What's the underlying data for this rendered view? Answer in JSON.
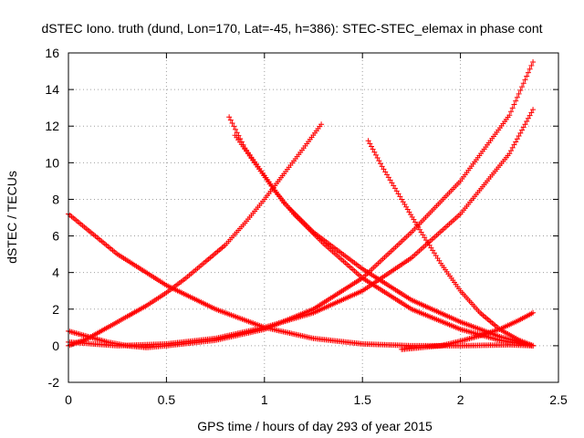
{
  "chart_data": {
    "type": "scatter",
    "title": "dSTEC Iono. truth (dund, Lon=170, Lat=-45, h=386): STEC-STEC_elemax in phase cont",
    "xlabel": "GPS time / hours of day 293 of year 2015",
    "ylabel": "dSTEC  / TECUs",
    "xlim": [
      0,
      2.5
    ],
    "ylim": [
      -2,
      16
    ],
    "x_ticks": [
      "0",
      "0.5",
      "1",
      "1.5",
      "2",
      "2.5"
    ],
    "y_ticks": [
      "-2",
      "0",
      "2",
      "4",
      "6",
      "8",
      "10",
      "12",
      "14",
      "16"
    ],
    "grid": true,
    "marker": "plus",
    "color": "#ff0000",
    "series": [
      {
        "x": [
          0.0,
          0.25,
          0.5,
          0.75,
          1.0,
          1.25,
          1.5,
          1.75,
          2.0,
          2.25,
          2.37
        ],
        "y": [
          7.2,
          5.0,
          3.3,
          2.0,
          1.0,
          0.4,
          0.1,
          0.0,
          0.0,
          0.05,
          0.0
        ]
      },
      {
        "x": [
          0.0,
          0.1,
          0.2,
          0.3,
          0.4,
          0.5,
          0.6,
          0.7,
          0.8,
          0.9,
          1.0,
          1.1,
          1.2,
          1.29
        ],
        "y": [
          0.0,
          0.4,
          1.0,
          1.6,
          2.2,
          2.9,
          3.7,
          4.6,
          5.5,
          6.7,
          8.0,
          9.4,
          10.8,
          12.1
        ]
      },
      {
        "x": [
          0.0,
          0.25,
          0.5,
          0.75,
          1.0,
          1.25,
          1.5,
          1.75,
          2.0,
          2.25,
          2.37
        ],
        "y": [
          0.2,
          0.0,
          0.1,
          0.4,
          1.0,
          1.8,
          3.0,
          4.8,
          7.2,
          10.5,
          12.9
        ]
      },
      {
        "x": [
          0.0,
          0.1,
          0.2,
          0.3,
          0.4,
          0.5,
          0.75,
          1.0,
          1.25,
          1.5,
          1.75,
          2.0,
          2.25,
          2.37
        ],
        "y": [
          0.8,
          0.5,
          0.2,
          0.0,
          -0.1,
          0.0,
          0.3,
          0.9,
          2.0,
          3.7,
          6.2,
          9.0,
          12.6,
          15.5
        ]
      },
      {
        "x": [
          0.82,
          0.9,
          1.0,
          1.1,
          1.25,
          1.5,
          1.75,
          2.0,
          2.2,
          2.37
        ],
        "y": [
          12.5,
          10.8,
          9.3,
          7.8,
          6.2,
          4.2,
          2.5,
          1.3,
          0.5,
          0.0
        ]
      },
      {
        "x": [
          0.85,
          0.95,
          1.05,
          1.15,
          1.3,
          1.5,
          1.75,
          2.0,
          2.2,
          2.37
        ],
        "y": [
          11.5,
          10.0,
          8.5,
          7.2,
          5.6,
          3.7,
          2.0,
          0.9,
          0.3,
          0.0
        ]
      },
      {
        "x": [
          1.53,
          1.6,
          1.7,
          1.8,
          1.9,
          2.0,
          2.1,
          2.2,
          2.3,
          2.37
        ],
        "y": [
          11.2,
          9.8,
          8.0,
          6.2,
          4.5,
          3.0,
          1.8,
          0.9,
          0.3,
          0.0
        ]
      },
      {
        "x": [
          1.7,
          1.8,
          1.9,
          2.0,
          2.1,
          2.2,
          2.3,
          2.37
        ],
        "y": [
          -0.2,
          -0.1,
          0.0,
          0.25,
          0.55,
          0.9,
          1.4,
          1.8
        ]
      }
    ]
  }
}
